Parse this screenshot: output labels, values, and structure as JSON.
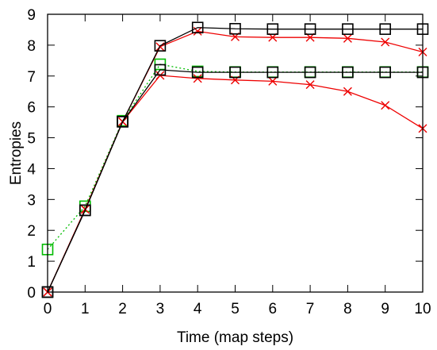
{
  "chart_data": {
    "type": "line",
    "title": "",
    "xlabel": "Time (map steps)",
    "ylabel": "Entropies",
    "xlim": [
      0,
      10
    ],
    "ylim": [
      0,
      9
    ],
    "x_ticks": [
      "0",
      "1",
      "2",
      "3",
      "4",
      "5",
      "6",
      "7",
      "8",
      "9",
      "10"
    ],
    "y_ticks": [
      "0",
      "1",
      "2",
      "3",
      "4",
      "5",
      "6",
      "7",
      "8",
      "9"
    ],
    "grid": false,
    "legend": "none",
    "series": [
      {
        "color": "#000000",
        "marker": "square",
        "dash": "solid",
        "x": [
          0,
          1,
          2,
          3,
          4,
          5,
          6,
          7,
          8,
          9,
          10
        ],
        "values": [
          0,
          2.65,
          5.52,
          7.98,
          8.57,
          8.53,
          8.52,
          8.52,
          8.52,
          8.52,
          8.52
        ]
      },
      {
        "color": "#000000",
        "marker": "square",
        "dash": "solid",
        "x": [
          0,
          1,
          2,
          3,
          4,
          5,
          6,
          7,
          8,
          9,
          10
        ],
        "values": [
          0,
          2.65,
          5.52,
          7.2,
          7.12,
          7.12,
          7.12,
          7.12,
          7.12,
          7.12,
          7.12
        ]
      },
      {
        "color": "#ee0000",
        "marker": "x",
        "dash": "solid",
        "x": [
          0,
          1,
          2,
          3,
          4,
          5,
          6,
          7,
          8,
          9,
          10
        ],
        "values": [
          0,
          2.68,
          5.52,
          7.95,
          8.45,
          8.27,
          8.25,
          8.25,
          8.22,
          8.1,
          7.78
        ]
      },
      {
        "color": "#ee0000",
        "marker": "x",
        "dash": "solid",
        "x": [
          0,
          1,
          2,
          3,
          4,
          5,
          6,
          7,
          8,
          9,
          10
        ],
        "values": [
          0,
          2.68,
          5.52,
          7.02,
          6.92,
          6.87,
          6.83,
          6.72,
          6.5,
          6.05,
          5.3
        ]
      },
      {
        "color": "#00bb00",
        "marker": "square",
        "dash": "dotted",
        "x": [
          0,
          1,
          2,
          3,
          4,
          5,
          6,
          7,
          8,
          9,
          10
        ],
        "values": [
          1.38,
          2.78,
          5.55,
          7.38,
          7.15,
          7.13,
          7.13,
          7.13,
          7.13,
          7.13,
          7.13
        ]
      }
    ]
  }
}
